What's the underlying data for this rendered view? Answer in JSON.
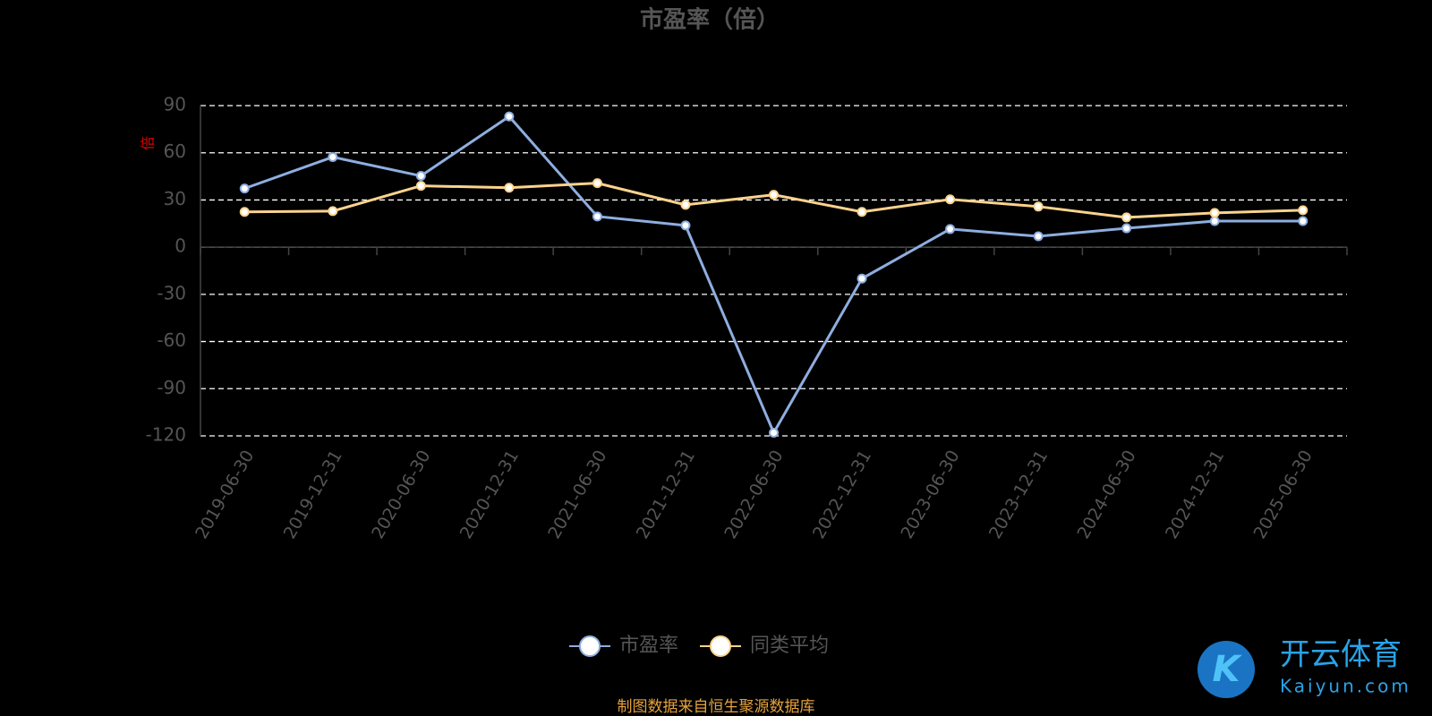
{
  "chart_data": {
    "type": "line",
    "title": "市盈率（倍）",
    "y_axis_label": "倍",
    "categories": [
      "2019-06-30",
      "2019-12-31",
      "2020-06-30",
      "2020-12-31",
      "2021-06-30",
      "2021-12-31",
      "2022-06-30",
      "2022-12-31",
      "2023-06-30",
      "2023-12-31",
      "2024-06-30",
      "2024-12-31",
      "2025-06-30"
    ],
    "series": [
      {
        "name": "市盈率",
        "color": "#8eaee0",
        "values": [
          37.3,
          57.3,
          45.3,
          83.1,
          19.5,
          13.8,
          -118,
          -20,
          11.5,
          6.9,
          12,
          16.6,
          16.6
        ]
      },
      {
        "name": "同类平均",
        "color": "#fbd38d",
        "values": [
          22.4,
          22.9,
          39,
          37.8,
          40.7,
          26.9,
          33.3,
          22.4,
          30.4,
          25.8,
          18.9,
          21.8,
          23.5
        ]
      }
    ],
    "ylim": [
      -120,
      90
    ],
    "yticks": [
      -120,
      -90,
      -60,
      -30,
      0,
      30,
      60,
      90
    ],
    "grid": true,
    "source": "制图数据来自恒生聚源数据库"
  },
  "watermark": {
    "brand": "开云体育",
    "site": "Kaiyun.com"
  }
}
